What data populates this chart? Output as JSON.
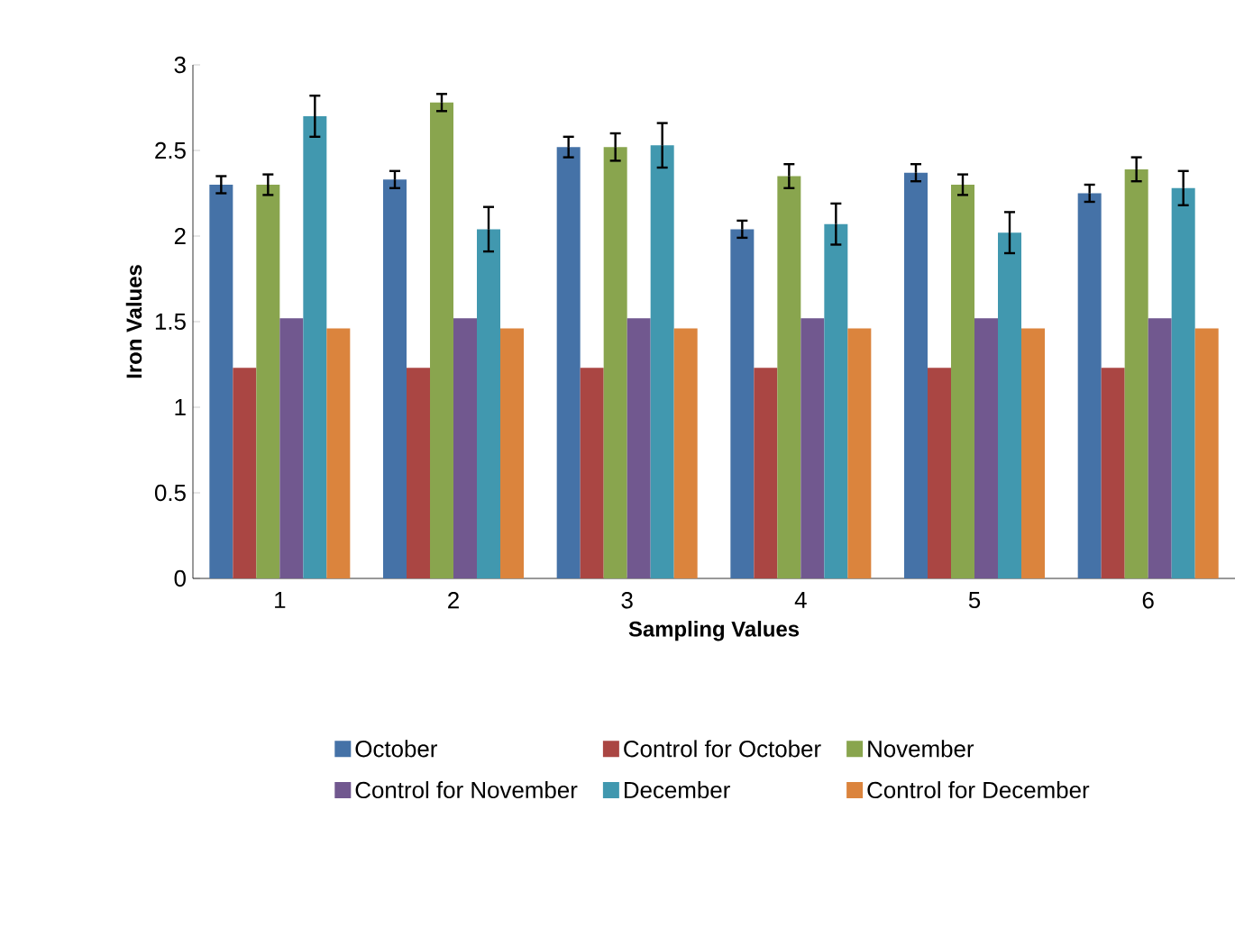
{
  "chart_data": {
    "type": "bar",
    "xlabel": "Sampling Values",
    "ylabel": "Iron Values",
    "categories": [
      "1",
      "2",
      "3",
      "4",
      "5",
      "6"
    ],
    "series": [
      {
        "name": "October",
        "color": "#4572a7",
        "values": [
          2.3,
          2.33,
          2.52,
          2.04,
          2.37,
          2.25
        ],
        "errors": [
          0.05,
          0.05,
          0.06,
          0.05,
          0.05,
          0.05
        ]
      },
      {
        "name": "Control for October",
        "color": "#aa4643",
        "values": [
          1.23,
          1.23,
          1.23,
          1.23,
          1.23,
          1.23
        ]
      },
      {
        "name": "November",
        "color": "#89a54e",
        "values": [
          2.3,
          2.78,
          2.52,
          2.35,
          2.3,
          2.39
        ],
        "errors": [
          0.06,
          0.05,
          0.08,
          0.07,
          0.06,
          0.07
        ]
      },
      {
        "name": "Control for November",
        "color": "#71588f",
        "values": [
          1.52,
          1.52,
          1.52,
          1.52,
          1.52,
          1.52
        ]
      },
      {
        "name": "December",
        "color": "#4198af",
        "values": [
          2.7,
          2.04,
          2.53,
          2.07,
          2.02,
          2.28
        ],
        "errors": [
          0.12,
          0.13,
          0.13,
          0.12,
          0.12,
          0.1
        ]
      },
      {
        "name": "Control for December",
        "color": "#db843d",
        "values": [
          1.46,
          1.46,
          1.46,
          1.46,
          1.46,
          1.46
        ]
      }
    ],
    "ylim": [
      0,
      3
    ],
    "yticks": [
      0,
      0.5,
      1,
      1.5,
      2,
      2.5,
      3
    ],
    "legend": "bottom"
  }
}
